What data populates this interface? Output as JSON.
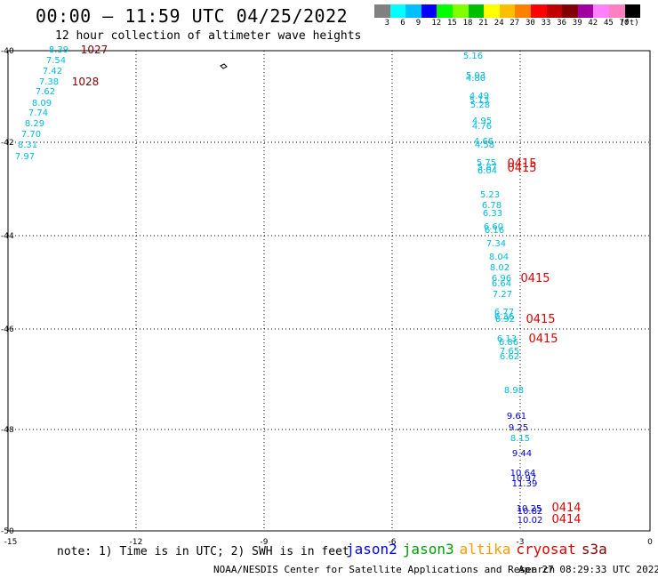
{
  "header": {
    "title": "00:00 — 11:59 UTC 04/25/2022",
    "subtitle": "12 hour collection of altimeter wave heights"
  },
  "colorbar": {
    "colors": [
      "#808080",
      "#00ffff",
      "#00bfff",
      "#0000ff",
      "#00ff00",
      "#7fff00",
      "#00bf00",
      "#ffff00",
      "#ffbf00",
      "#ff8000",
      "#ff0000",
      "#bf0000",
      "#800000",
      "#a000a0",
      "#ff80ff",
      "#ff80c0",
      "#000000"
    ],
    "labels": [
      "3",
      "6",
      "9",
      "12",
      "15",
      "18",
      "21",
      "24",
      "27",
      "30",
      "33",
      "36",
      "39",
      "42",
      "45",
      "70",
      "(ft)"
    ]
  },
  "map": {
    "lon_range": [
      -15,
      0
    ],
    "lat_range": [
      -50,
      -40
    ],
    "lon_ticks": [
      "-15",
      "-12",
      "-9",
      "-6",
      "-3",
      "0"
    ],
    "lat_ticks": [
      "-40",
      "-42",
      "-44",
      "-46",
      "-48",
      "-50"
    ],
    "grid": "dotted",
    "land_marks": [
      "island"
    ]
  },
  "tracks": {
    "west_values": [
      "8.39",
      "7.54",
      "7.42",
      "7.38",
      "7.62",
      "8.09",
      "7.74",
      "8.29",
      "7.70",
      "8.31",
      "7.97"
    ],
    "west_times": [
      "1027",
      "1028"
    ],
    "east_values": [
      "5.16",
      "5.03",
      "4.80",
      "4.49",
      "5.13",
      "5.28",
      "4.95",
      "4.76",
      "4.66",
      "4.58",
      "5.75",
      "5.87",
      "6.04",
      "5.23",
      "6.78",
      "6.33",
      "6.60",
      "6.16",
      "7.34",
      "8.04",
      "8.02",
      "6.96",
      "6.64",
      "7.27",
      "6.77",
      "6.36",
      "6.92",
      "6.13",
      "6.86",
      "7.65",
      "6.62",
      "8.98",
      "9.61",
      "9.25",
      "8.15",
      "9.44",
      "10.64",
      "10.97",
      "11.39",
      "10.25",
      "10.82",
      "10.02"
    ],
    "east_times": [
      "0415",
      "0415",
      "0415",
      "0415",
      "0415",
      "0414",
      "0414"
    ]
  },
  "legend": {
    "note": "note: 1) Time is in UTC; 2) SWH is in feet",
    "satellites": [
      {
        "name": "jason2",
        "color": "#0000ff"
      },
      {
        "name": "jason3",
        "color": "#00a000"
      },
      {
        "name": "altika",
        "color": "#ff9900"
      },
      {
        "name": "cryosat",
        "color": "#e00000"
      },
      {
        "name": "s3a",
        "color": "#800000"
      }
    ]
  },
  "footer": {
    "credit": "NOAA/NESDIS Center for Satellite Applications and Research",
    "timestamp": "Apr 27 08:29:33 UTC 2022"
  }
}
